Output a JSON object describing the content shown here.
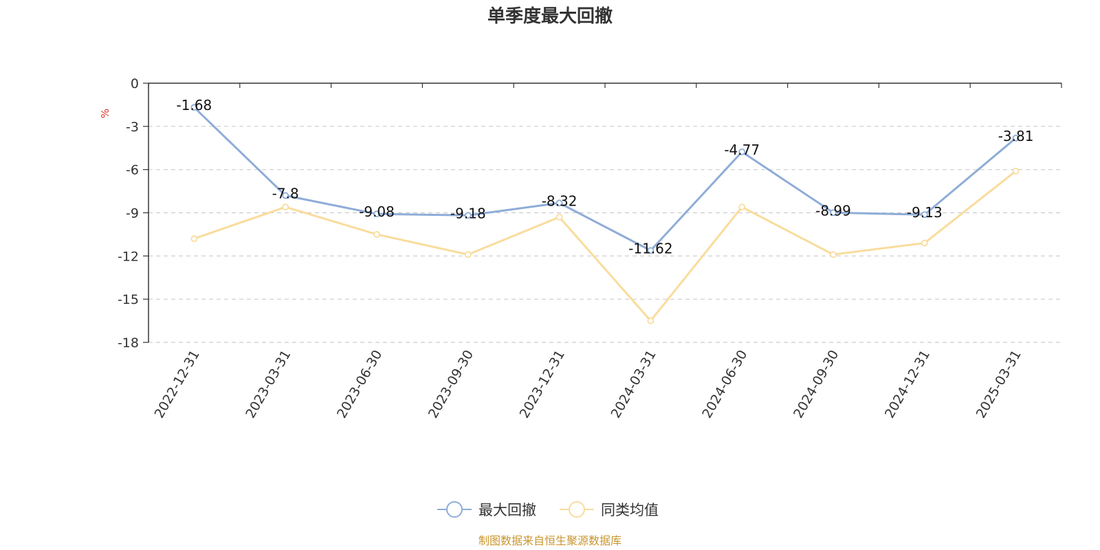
{
  "chart_data": {
    "type": "line",
    "title": "单季度最大回撤",
    "ylabel": "%",
    "ylim": [
      -18,
      0
    ],
    "yticks": [
      0,
      -3,
      -6,
      -9,
      -12,
      -15,
      -18
    ],
    "categories": [
      "2022-12-31",
      "2023-03-31",
      "2023-06-30",
      "2023-09-30",
      "2023-12-31",
      "2024-03-31",
      "2024-06-30",
      "2024-09-30",
      "2024-12-31",
      "2025-03-31"
    ],
    "series": [
      {
        "name": "最大回撤",
        "color": "#8eacd8",
        "values": [
          -1.68,
          -7.8,
          -9.08,
          -9.18,
          -8.32,
          -11.62,
          -4.77,
          -8.99,
          -9.13,
          -3.81
        ],
        "data_labels": [
          "-1.68",
          "-7.8",
          "-9.08",
          "-9.18",
          "-8.32",
          "-11.62",
          "-4.77",
          "-8.99",
          "-9.13",
          "-3.81"
        ]
      },
      {
        "name": "同类均值",
        "color": "#f9dc9c",
        "values": [
          -10.8,
          -8.6,
          -10.5,
          -11.9,
          -9.3,
          -16.5,
          -8.6,
          -11.9,
          -11.1,
          -6.1
        ]
      }
    ],
    "grid": "horizontal-dashed",
    "legend_position": "bottom-center",
    "axis_color": "#333333",
    "unit_color": "#e0302a"
  },
  "footer": {
    "source": "制图数据来自恒生聚源数据库",
    "color": "#c8962e"
  }
}
